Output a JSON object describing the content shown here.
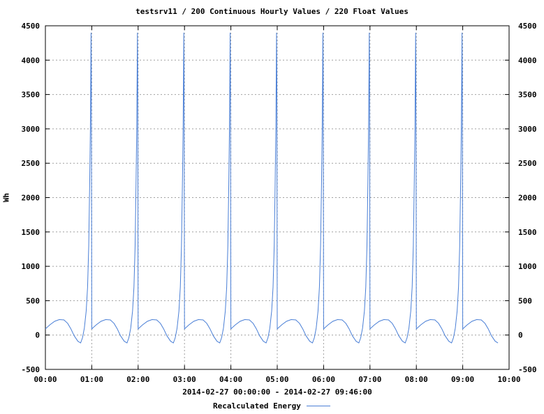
{
  "chart_data": {
    "type": "line",
    "title": "testsrv11 / 200 Continuous Hourly Values / 220 Float Values",
    "xlabel": "2014-02-27 00:00:00 - 2014-02-27 09:46:00",
    "ylabel": "Wh",
    "x_ticks": [
      "00:00",
      "01:00",
      "02:00",
      "03:00",
      "04:00",
      "05:00",
      "06:00",
      "07:00",
      "08:00",
      "09:00",
      "10:00"
    ],
    "xlim_hours": [
      0,
      10
    ],
    "y_ticks": [
      -500,
      0,
      500,
      1000,
      1500,
      2000,
      2500,
      3000,
      3500,
      4000,
      4500
    ],
    "ylim": [
      -500,
      4500
    ],
    "grid": true,
    "legend_position": "bottom-center",
    "series": [
      {
        "name": "Recalculated Energy",
        "color": "#4a7fd6",
        "cycle_shape": {
          "period_hours": 1,
          "first_cycle_start_hours": 0.0,
          "last_cycle_end_hours": 9.77,
          "points": [
            [
              0.0,
              90
            ],
            [
              0.1,
              150
            ],
            [
              0.2,
              200
            ],
            [
              0.3,
              225
            ],
            [
              0.4,
              220
            ],
            [
              0.48,
              170
            ],
            [
              0.55,
              90
            ],
            [
              0.62,
              -10
            ],
            [
              0.7,
              -90
            ],
            [
              0.76,
              -115
            ],
            [
              0.8,
              -40
            ],
            [
              0.84,
              100
            ],
            [
              0.88,
              350
            ],
            [
              0.91,
              700
            ],
            [
              0.935,
              1300
            ],
            [
              0.955,
              2200
            ],
            [
              0.97,
              3000
            ],
            [
              0.98,
              3900
            ],
            [
              0.985,
              4400
            ],
            [
              0.99,
              3900
            ],
            [
              0.995,
              2250
            ],
            [
              1.0,
              90
            ]
          ]
        }
      }
    ]
  }
}
